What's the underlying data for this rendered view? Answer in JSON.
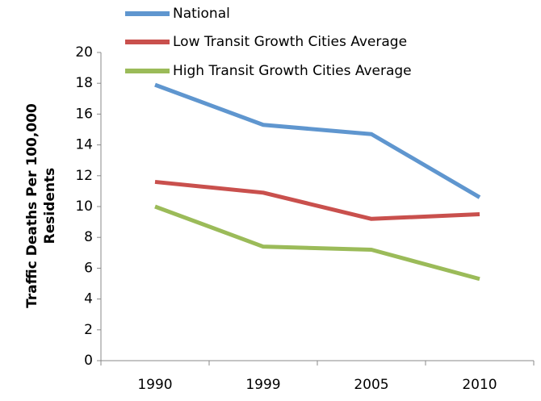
{
  "chart_data": {
    "type": "line",
    "ylabel": [
      "Traffic Deaths Per 100,000",
      "Residents"
    ],
    "categories": [
      "1990",
      "1999",
      "2005",
      "2010"
    ],
    "series": [
      {
        "name": "National",
        "color": "#5f96cf",
        "values": [
          17.9,
          15.3,
          14.7,
          10.6
        ]
      },
      {
        "name": "Low Transit Growth Cities Average",
        "color": "#c9504d",
        "values": [
          11.6,
          10.9,
          9.2,
          9.5
        ]
      },
      {
        "name": "High Transit Growth Cities Average",
        "color": "#9bbb59",
        "values": [
          10.0,
          7.4,
          7.2,
          5.3
        ]
      }
    ],
    "ylim": [
      0,
      20
    ],
    "yticks": [
      0,
      2,
      4,
      6,
      8,
      10,
      12,
      14,
      16,
      18,
      20
    ],
    "grid": false,
    "legend": "top"
  }
}
